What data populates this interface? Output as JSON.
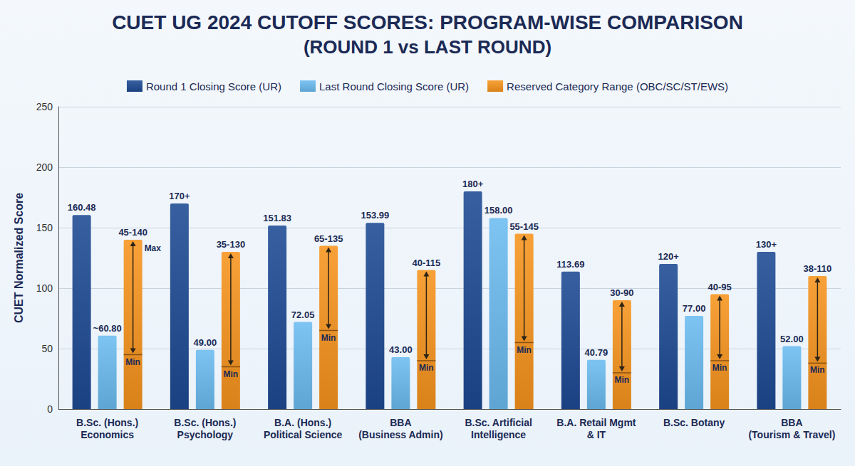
{
  "chart_data": {
    "type": "bar",
    "title": "CUET UG 2024 CUTOFF SCORES: PROGRAM-WISE COMPARISON",
    "subtitle": "(ROUND 1 vs LAST ROUND)",
    "y_label": "CUET Normalized Score",
    "categories": [
      "B.Sc. (Hons.) Economics",
      "B.Sc. (Hons.) Psychology",
      "B.A. (Hons.) Political Science",
      "BBA (Business Admin)",
      "B.Sc. Artificial Intelligence",
      "B.A. Retail Mgmt & IT",
      "B.Sc. Botany",
      "BBA (Tourism & Travel)"
    ],
    "series": [
      {
        "name": "Round 1 Closing Score (UR)",
        "color": "#1d4a94",
        "values": [
          160.48,
          170,
          151.83,
          153.99,
          180,
          113.69,
          120,
          130
        ],
        "value_labels": [
          "160.48",
          "170+",
          "151.83",
          "153.99",
          "180+",
          "113.69",
          "120+",
          "130+"
        ]
      },
      {
        "name": "Last Round Closing Score (UR)",
        "color": "#6bbcf0",
        "values": [
          60.8,
          49,
          72.05,
          43,
          158,
          40.79,
          77,
          52
        ],
        "value_labels": [
          "~60.80",
          "49.00",
          "72.05",
          "43.00",
          "158.00",
          "40.79",
          "77.00",
          "52.00"
        ]
      },
      {
        "name": "Reserved Category Range (OBC/SC/ST/EWS)",
        "color": "#f7941d",
        "values": [
          140,
          130,
          135,
          115,
          145,
          90,
          95,
          110
        ],
        "min": [
          45,
          35,
          65,
          40,
          55,
          30,
          40,
          38
        ],
        "value_labels": [
          "45-140",
          "35-130",
          "65-135",
          "40-115",
          "55-145",
          "30-90",
          "40-95",
          "38-110"
        ],
        "annotations": [
          {
            "text": "Max",
            "index": 0,
            "value": 140
          },
          {
            "text": "Min",
            "index": 0,
            "value": 45
          },
          {
            "text": "Min",
            "index": 1,
            "value": 35
          },
          {
            "text": "Min",
            "index": 2,
            "value": 65
          },
          {
            "text": "Min",
            "index": 3,
            "value": 40
          },
          {
            "text": "Min",
            "index": 4,
            "value": 55
          },
          {
            "text": "Min",
            "index": 5,
            "value": 30
          },
          {
            "text": "Min",
            "index": 6,
            "value": 40
          },
          {
            "text": "Min",
            "index": 7,
            "value": 38
          }
        ]
      }
    ],
    "ylim": [
      0,
      250
    ],
    "yticks": [
      0,
      50,
      100,
      150,
      200,
      250
    ],
    "grid": true,
    "legend": "top",
    "data_labels": true
  }
}
